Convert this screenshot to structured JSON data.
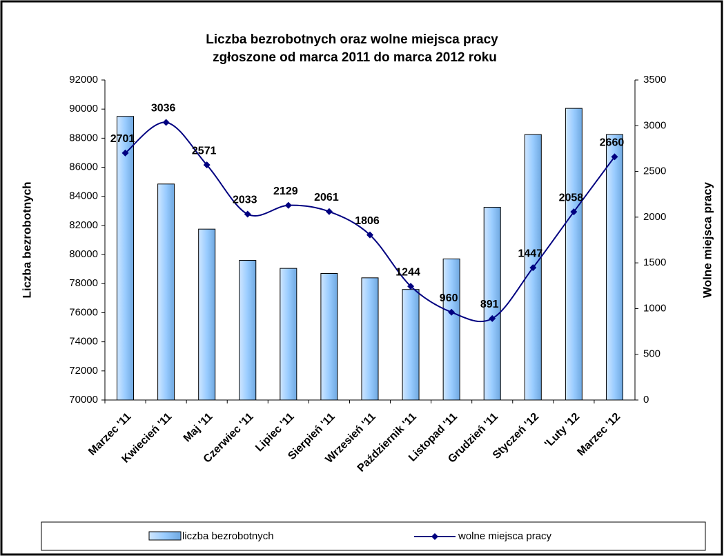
{
  "chart_data": {
    "type": "bar_line",
    "title": [
      "Liczba bezrobotnych oraz wolne miejsca pracy",
      "zgłoszone od marca 2011 do marca 2012 roku"
    ],
    "y_label": "Liczba bezrobotnych",
    "y2_label": "Wolne  miejsca  pracy",
    "categories": [
      "Marzec '11",
      "Kwiecień '11",
      "Maj '11",
      "Czerwiec '11",
      "Lipiec '11",
      "Sierpień '11",
      "Wrzesień '11",
      "Październik '11",
      "Listopad '11",
      "Grudzień '11",
      "Styczeń '12",
      "'Luty '12",
      "Marzec '12"
    ],
    "series": [
      {
        "name": "liczba bezrobotnych",
        "color": "#99ccff",
        "type": "bar",
        "values": [
          89500,
          84850,
          81750,
          79600,
          79050,
          78700,
          78400,
          77600,
          79700,
          83250,
          88250,
          90050,
          88250
        ]
      },
      {
        "name": "wolne miejsca pracy",
        "color": "#000080",
        "type": "line",
        "axis": "y2",
        "values": [
          2701,
          3036,
          2571,
          2033,
          2129,
          2061,
          1806,
          1244,
          960,
          891,
          1447,
          2058,
          2660
        ]
      }
    ],
    "ylim": [
      70000,
      92000
    ],
    "yticks": [
      70000,
      72000,
      74000,
      76000,
      78000,
      80000,
      82000,
      84000,
      86000,
      88000,
      90000,
      92000
    ],
    "y2lim": [
      0,
      3500
    ],
    "y2ticks": [
      0,
      500,
      1000,
      1500,
      2000,
      2500,
      3000,
      3500
    ]
  }
}
